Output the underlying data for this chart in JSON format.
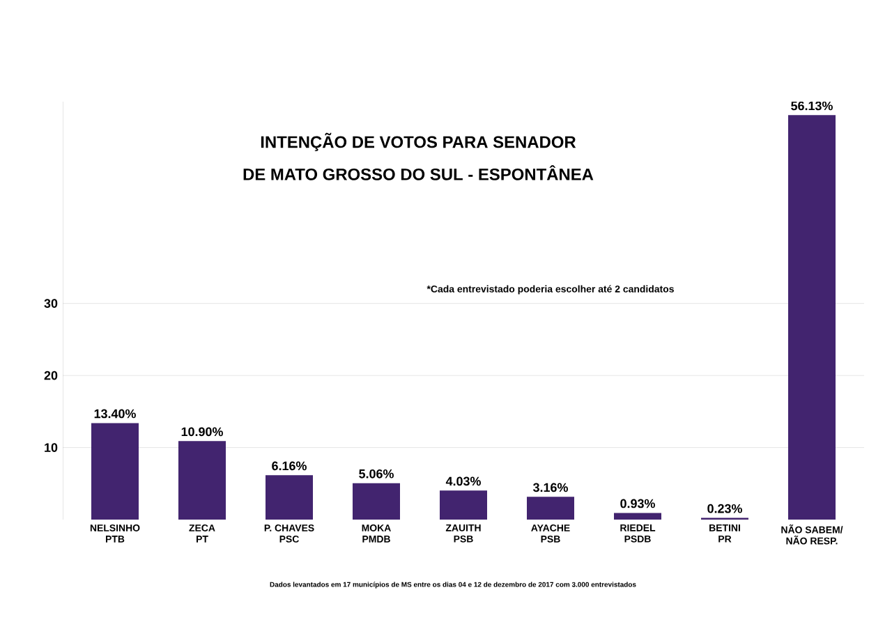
{
  "chart_data": {
    "type": "bar",
    "title": "INTENÇÃO DE VOTOS PARA SENADOR",
    "subtitle": "DE MATO GROSSO DO SUL - ESPONTÂNEA",
    "categories": [
      "NELSINHO\nPTB",
      "ZECA\nPT",
      "P. CHAVES\nPSC",
      "MOKA\nPMDB",
      "ZAUITH\nPSB",
      "AYACHE\nPSB",
      "RIEDEL\nPSDB",
      "BETINI\nPR",
      "NÃO SABEM/\nNÃO RESP."
    ],
    "values": [
      13.4,
      10.9,
      6.16,
      5.06,
      4.03,
      3.16,
      0.93,
      0.23,
      56.13
    ],
    "value_labels": [
      "13.40%",
      "10.90%",
      "6.16%",
      "5.06%",
      "4.03%",
      "3.16%",
      "0.93%",
      "0.23%",
      "56.13%"
    ],
    "color": "#42246f",
    "ylim": [
      0,
      58
    ],
    "yticks": [
      10,
      20,
      30
    ],
    "grid": "y",
    "annotations": [
      "*Cada entrevistado poderia escolher até 2 candidatos",
      "Dados levantados em 17 municípios de MS entre os dias 04 e 12 de dezembro de 2017 com 3.000 entrevistados"
    ]
  }
}
